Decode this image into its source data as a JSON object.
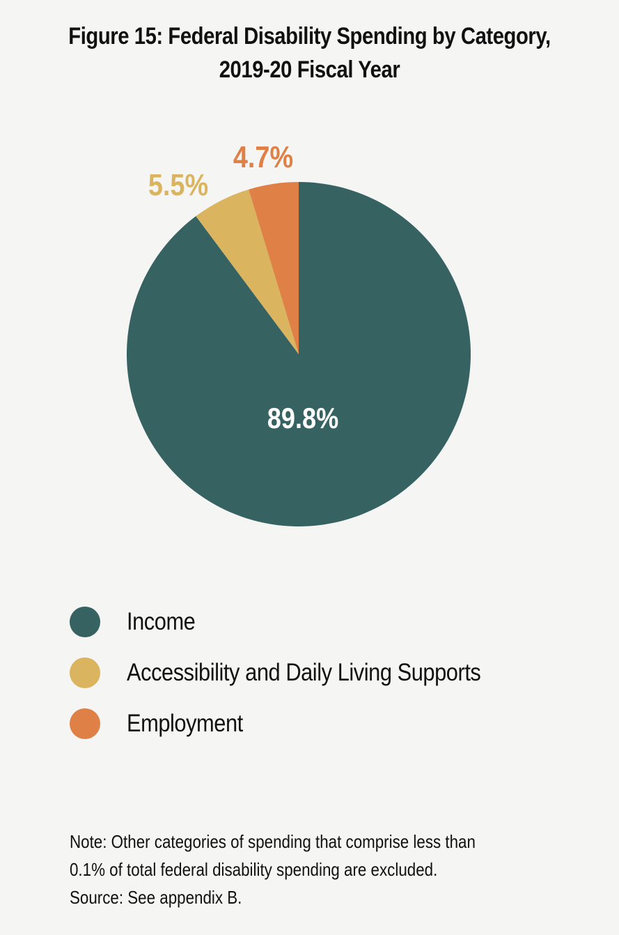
{
  "title_line1": "Figure 15: Federal Disability Spending by Category,",
  "title_line2": "2019-20 Fiscal Year",
  "chart_data": {
    "type": "pie",
    "categories": [
      "Income",
      "Accessibility and Daily Living Supports",
      "Employment"
    ],
    "values": [
      89.8,
      5.5,
      4.7
    ],
    "labels": [
      "89.8%",
      "5.5%",
      "4.7%"
    ],
    "colors": [
      "#366261",
      "#dab45e",
      "#df8147"
    ],
    "label_colors": [
      "#ffffff",
      "#dab45e",
      "#df8147"
    ],
    "start_angle": "12 o'clock",
    "direction": "clockwise",
    "legend_position": "bottom-left"
  },
  "legend": [
    {
      "label": "Income",
      "color": "#366261"
    },
    {
      "label": "Accessibility and Daily Living Supports",
      "color": "#dab45e"
    },
    {
      "label": "Employment",
      "color": "#df8147"
    }
  ],
  "note": {
    "line1": "Note: Other categories of spending that comprise less than",
    "line2": "0.1% of total federal disability spending are excluded.",
    "line3": "Source: See appendix B."
  }
}
